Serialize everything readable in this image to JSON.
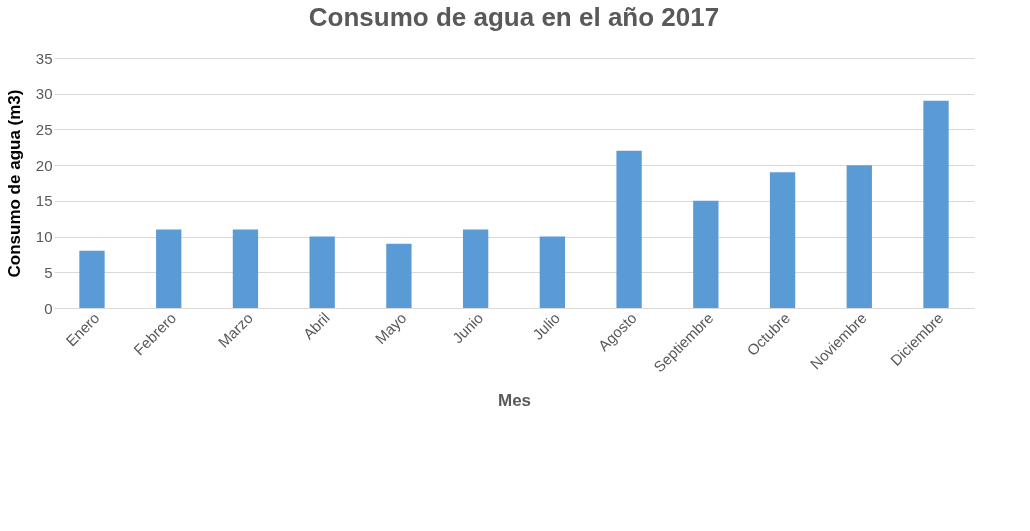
{
  "chart_data": {
    "type": "bar",
    "title": "Consumo de agua en el año 2017",
    "xlabel": "Mes",
    "ylabel": "Consumo de agua (m3)",
    "categories": [
      "Enero",
      "Febrero",
      "Marzo",
      "Abril",
      "Mayo",
      "Junio",
      "Julio",
      "Agosto",
      "Septiembre",
      "Octubre",
      "Noviembre",
      "Diciembre"
    ],
    "values": [
      8,
      11,
      11,
      10,
      9,
      11,
      10,
      22,
      15,
      19,
      20,
      29
    ],
    "color": "#5b9bd5",
    "ylim": [
      0,
      35
    ],
    "yticks": [
      0,
      5,
      10,
      15,
      20,
      25,
      30,
      35
    ],
    "grid": "y"
  }
}
